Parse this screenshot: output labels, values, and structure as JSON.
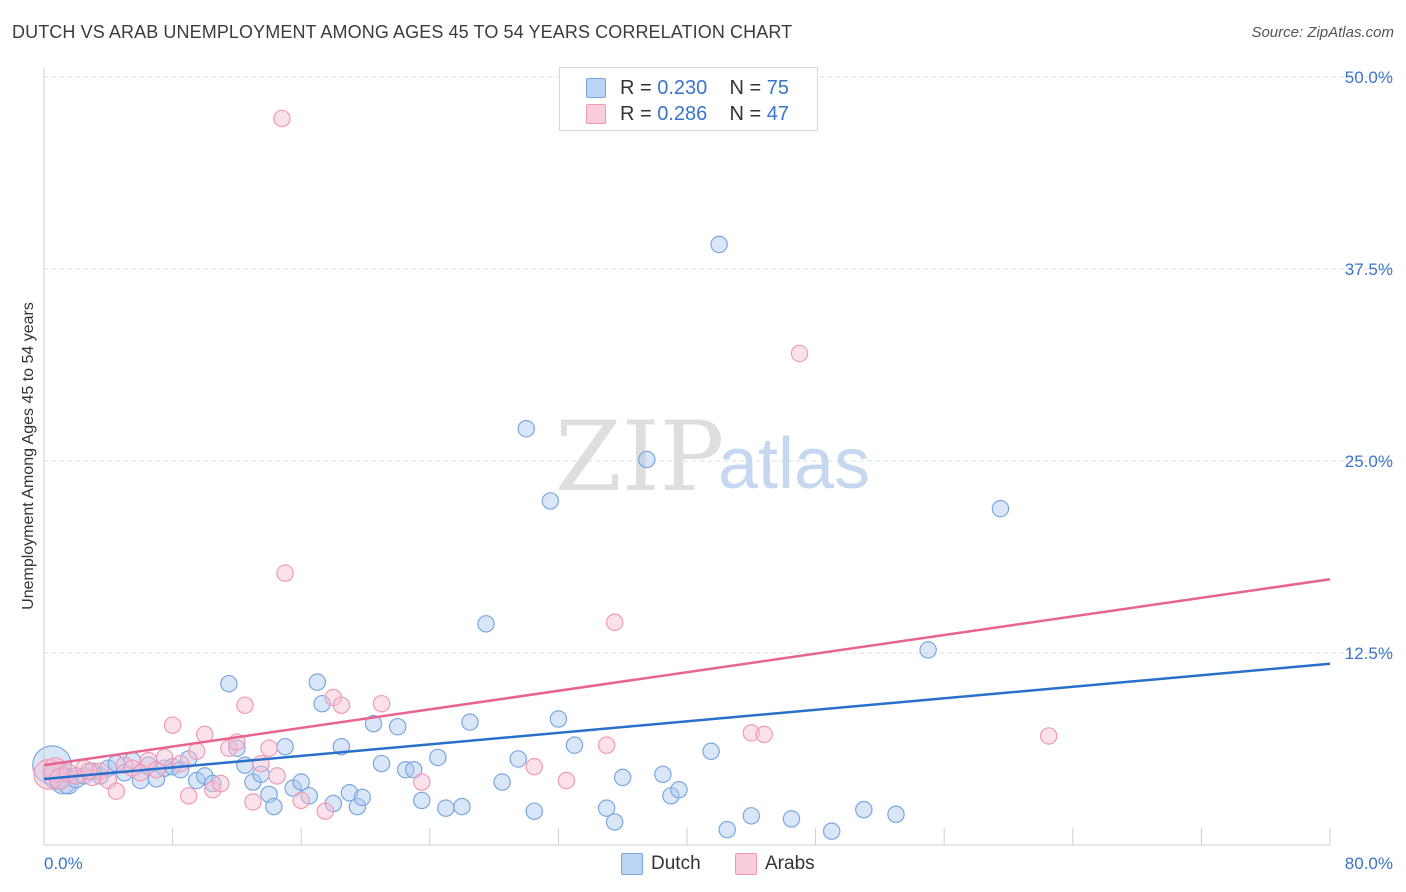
{
  "chart_data": {
    "type": "scatter",
    "title": "DUTCH VS ARAB UNEMPLOYMENT AMONG AGES 45 TO 54 YEARS CORRELATION CHART",
    "source": "Source: ZipAtlas.com",
    "xlabel": "",
    "ylabel": "Unemployment Among Ages 45 to 54 years",
    "xlim": [
      0,
      80
    ],
    "ylim": [
      0,
      50
    ],
    "x_tick_labels": [
      "0.0%",
      "80.0%"
    ],
    "y_tick_labels": [
      "12.5%",
      "25.0%",
      "37.5%",
      "50.0%"
    ],
    "y_ticks": [
      12.5,
      25.0,
      37.5,
      50.0
    ],
    "grid": true,
    "legend": [
      {
        "r_label": "R =",
        "r_value": "0.230",
        "n_label": "N =",
        "n_value": "75"
      },
      {
        "r_label": "R =",
        "r_value": "0.286",
        "n_label": "N =",
        "n_value": "47"
      }
    ],
    "series": [
      {
        "name": "Dutch",
        "color": "#7aa7e0",
        "fill": "#aac8f0",
        "line_color": "#2a6fc9",
        "trend": {
          "x0": 0,
          "y0": 4.3,
          "x1": 80,
          "y1": 11.8
        },
        "points": [
          [
            0.5,
            5.2
          ],
          [
            0.8,
            4.5
          ],
          [
            1.2,
            4.2
          ],
          [
            1.5,
            4.0
          ],
          [
            2.0,
            4.3
          ],
          [
            2.5,
            4.5
          ],
          [
            3.0,
            4.8
          ],
          [
            3.5,
            4.5
          ],
          [
            4.0,
            5.0
          ],
          [
            4.5,
            5.3
          ],
          [
            5.0,
            4.7
          ],
          [
            5.5,
            5.5
          ],
          [
            6.0,
            4.2
          ],
          [
            6.5,
            5.2
          ],
          [
            7.0,
            4.3
          ],
          [
            7.5,
            5.0
          ],
          [
            8.0,
            5.1
          ],
          [
            8.5,
            4.9
          ],
          [
            9.0,
            5.6
          ],
          [
            9.5,
            4.2
          ],
          [
            10.0,
            4.5
          ],
          [
            10.5,
            4.0
          ],
          [
            11.5,
            10.5
          ],
          [
            12.0,
            6.3
          ],
          [
            12.5,
            5.2
          ],
          [
            13.0,
            4.1
          ],
          [
            13.5,
            4.6
          ],
          [
            14.0,
            3.3
          ],
          [
            14.3,
            2.5
          ],
          [
            15.0,
            6.4
          ],
          [
            15.5,
            3.7
          ],
          [
            16.0,
            4.1
          ],
          [
            16.5,
            3.2
          ],
          [
            17.0,
            10.6
          ],
          [
            17.3,
            9.2
          ],
          [
            18.0,
            2.7
          ],
          [
            18.5,
            6.4
          ],
          [
            19.0,
            3.4
          ],
          [
            19.5,
            2.5
          ],
          [
            19.8,
            3.1
          ],
          [
            20.5,
            7.9
          ],
          [
            21.0,
            5.3
          ],
          [
            22.0,
            7.7
          ],
          [
            22.5,
            4.9
          ],
          [
            23.0,
            4.9
          ],
          [
            23.5,
            2.9
          ],
          [
            24.5,
            5.7
          ],
          [
            25.0,
            2.4
          ],
          [
            26.0,
            2.5
          ],
          [
            26.5,
            8.0
          ],
          [
            27.5,
            14.4
          ],
          [
            28.5,
            4.1
          ],
          [
            29.5,
            5.6
          ],
          [
            30.0,
            27.1
          ],
          [
            30.5,
            2.2
          ],
          [
            31.5,
            22.4
          ],
          [
            32.0,
            8.2
          ],
          [
            33.0,
            6.5
          ],
          [
            35.0,
            2.4
          ],
          [
            35.5,
            1.5
          ],
          [
            36.0,
            4.4
          ],
          [
            37.5,
            25.1
          ],
          [
            38.5,
            4.6
          ],
          [
            39.0,
            3.2
          ],
          [
            39.5,
            3.6
          ],
          [
            41.5,
            6.1
          ],
          [
            42.0,
            39.1
          ],
          [
            42.5,
            1.0
          ],
          [
            44.0,
            1.9
          ],
          [
            46.5,
            1.7
          ],
          [
            49.0,
            0.9
          ],
          [
            51.0,
            2.3
          ],
          [
            53.0,
            2.0
          ],
          [
            55.0,
            12.7
          ],
          [
            59.5,
            21.9
          ]
        ],
        "sizes": [
          26,
          18,
          18,
          14,
          12,
          11,
          11,
          11,
          11,
          11,
          11,
          11,
          11,
          11,
          11,
          11,
          11,
          11,
          11,
          11,
          11,
          11,
          11,
          11,
          11,
          11,
          11,
          11,
          11,
          11,
          11,
          11,
          11,
          11,
          11,
          11,
          11,
          11,
          11,
          11,
          11,
          11,
          11,
          11,
          11,
          11,
          11,
          11,
          11,
          11,
          11,
          11,
          11,
          11,
          11,
          11,
          11,
          11,
          11,
          11,
          11,
          11,
          11,
          11,
          11,
          11,
          11,
          11,
          11,
          11,
          11,
          11,
          11,
          11,
          11
        ]
      },
      {
        "name": "Arabs",
        "color": "#f09ab8",
        "fill": "#f6bfd1",
        "line_color": "#e8648e",
        "trend": {
          "x0": 0,
          "y0": 5.2,
          "x1": 80,
          "y1": 17.3
        },
        "points": [
          [
            0.3,
            4.6
          ],
          [
            0.7,
            4.9
          ],
          [
            1.0,
            4.3
          ],
          [
            1.5,
            4.7
          ],
          [
            2.0,
            4.5
          ],
          [
            2.5,
            5.0
          ],
          [
            3.0,
            4.4
          ],
          [
            3.5,
            4.8
          ],
          [
            4.0,
            4.2
          ],
          [
            4.5,
            3.5
          ],
          [
            5.0,
            5.2
          ],
          [
            5.5,
            5.0
          ],
          [
            6.0,
            4.7
          ],
          [
            6.5,
            5.5
          ],
          [
            7.0,
            4.9
          ],
          [
            7.5,
            5.7
          ],
          [
            8.0,
            7.8
          ],
          [
            8.5,
            5.3
          ],
          [
            9.0,
            3.2
          ],
          [
            9.5,
            6.1
          ],
          [
            10.0,
            7.2
          ],
          [
            10.5,
            3.6
          ],
          [
            11.0,
            4.0
          ],
          [
            11.5,
            6.3
          ],
          [
            12.0,
            6.7
          ],
          [
            12.5,
            9.1
          ],
          [
            13.0,
            2.8
          ],
          [
            13.5,
            5.3
          ],
          [
            14.0,
            6.3
          ],
          [
            14.5,
            4.5
          ],
          [
            14.8,
            47.3
          ],
          [
            15.0,
            17.7
          ],
          [
            16.0,
            2.9
          ],
          [
            17.5,
            2.2
          ],
          [
            18.0,
            9.6
          ],
          [
            18.5,
            9.1
          ],
          [
            21.0,
            9.2
          ],
          [
            23.5,
            4.1
          ],
          [
            30.5,
            5.1
          ],
          [
            32.5,
            4.2
          ],
          [
            35.0,
            6.5
          ],
          [
            35.5,
            14.5
          ],
          [
            44.0,
            7.3
          ],
          [
            44.8,
            7.2
          ],
          [
            47.0,
            32.0
          ],
          [
            62.5,
            7.1
          ],
          [
            2.8,
            4.8
          ]
        ],
        "sizes": [
          20,
          16,
          14,
          12,
          11,
          11,
          11,
          11,
          11,
          11,
          11,
          11,
          11,
          11,
          11,
          11,
          11,
          11,
          11,
          11,
          11,
          11,
          11,
          11,
          11,
          11,
          11,
          11,
          11,
          11,
          11,
          11,
          11,
          11,
          11,
          11,
          11,
          11,
          11,
          11,
          11,
          11,
          11,
          11,
          11,
          11,
          11
        ]
      }
    ]
  },
  "watermark": {
    "zip": "ZIP",
    "atlas": "atlas"
  }
}
